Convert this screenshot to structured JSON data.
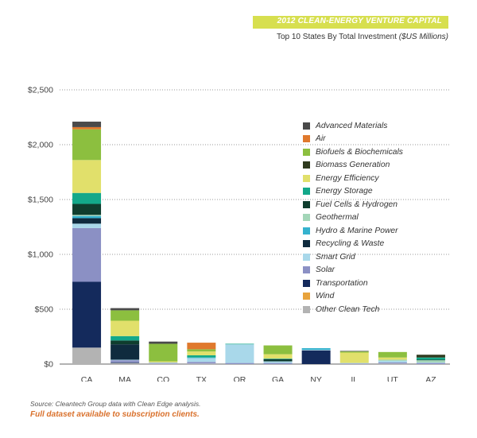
{
  "header": {
    "title": "2012 CLEAN-ENERGY VENTURE CAPITAL",
    "subtitle": "Top 10 States By Total Investment",
    "unit": "($US Millions)"
  },
  "footer": {
    "source": "Source: Cleantech Group data with Clean Edge analysis.",
    "note": "Full dataset available to subscription clients."
  },
  "chart_data": {
    "type": "bar",
    "stacked": true,
    "title": "Top 10 States By Total Investment ($US Millions)",
    "ylim": [
      0,
      2500
    ],
    "yticks": [
      0,
      500,
      1000,
      1500,
      2000,
      2500
    ],
    "ytick_labels": [
      "$0",
      "$500",
      "$1,000",
      "$1,500",
      "$2,000",
      "$2,500"
    ],
    "grid": "horizontal dotted",
    "legend_position": "right",
    "categories": [
      "CA",
      "MA",
      "CO",
      "TX",
      "OR",
      "GA",
      "NY",
      "IL",
      "UT",
      "AZ"
    ],
    "series": [
      {
        "name": "Other Clean Tech",
        "color": "#b3b3b3",
        "values": [
          150,
          10,
          5,
          5,
          0,
          0,
          0,
          0,
          5,
          0
        ]
      },
      {
        "name": "Wind",
        "color": "#e8a33c",
        "values": [
          0,
          0,
          0,
          0,
          0,
          0,
          0,
          0,
          0,
          0
        ]
      },
      {
        "name": "Transportation",
        "color": "#142a5c",
        "values": [
          600,
          5,
          0,
          0,
          0,
          0,
          125,
          0,
          0,
          0
        ]
      },
      {
        "name": "Solar",
        "color": "#8b90c4",
        "values": [
          490,
          20,
          5,
          15,
          10,
          10,
          0,
          5,
          10,
          10
        ]
      },
      {
        "name": "Smart Grid",
        "color": "#a9d8ea",
        "values": [
          40,
          5,
          5,
          35,
          170,
          15,
          5,
          5,
          15,
          5
        ]
      },
      {
        "name": "Recycling & Waste",
        "color": "#0f2b3e",
        "values": [
          50,
          140,
          0,
          0,
          0,
          0,
          0,
          0,
          0,
          0
        ]
      },
      {
        "name": "Hydro & Marine Power",
        "color": "#35b2ce",
        "values": [
          20,
          0,
          0,
          5,
          0,
          0,
          15,
          0,
          0,
          0
        ]
      },
      {
        "name": "Geothermal",
        "color": "#a3d6b8",
        "values": [
          10,
          0,
          0,
          0,
          0,
          0,
          0,
          0,
          10,
          20
        ]
      },
      {
        "name": "Fuel Cells & Hydrogen",
        "color": "#0f3d2e",
        "values": [
          100,
          35,
          0,
          0,
          0,
          20,
          0,
          0,
          0,
          5
        ]
      },
      {
        "name": "Energy Storage",
        "color": "#13a88a",
        "values": [
          100,
          40,
          0,
          20,
          5,
          5,
          0,
          0,
          0,
          20
        ]
      },
      {
        "name": "Energy Efficiency",
        "color": "#e1e06b",
        "values": [
          300,
          140,
          10,
          35,
          0,
          40,
          0,
          95,
          20,
          0
        ]
      },
      {
        "name": "Biomass Generation",
        "color": "#2f3a1e",
        "values": [
          0,
          0,
          0,
          0,
          0,
          0,
          0,
          0,
          0,
          25
        ]
      },
      {
        "name": "Biofuels & Biochemicals",
        "color": "#8cbf3f",
        "values": [
          280,
          95,
          160,
          20,
          0,
          80,
          0,
          10,
          50,
          0
        ]
      },
      {
        "name": "Air",
        "color": "#e0792d",
        "values": [
          20,
          0,
          0,
          60,
          0,
          0,
          0,
          0,
          0,
          0
        ]
      },
      {
        "name": "Advanced Materials",
        "color": "#4a4a4a",
        "values": [
          50,
          20,
          20,
          0,
          0,
          0,
          0,
          5,
          0,
          0
        ]
      }
    ],
    "legend_order": [
      "Advanced Materials",
      "Air",
      "Biofuels & Biochemicals",
      "Biomass Generation",
      "Energy Efficiency",
      "Energy Storage",
      "Fuel Cells & Hydrogen",
      "Geothermal",
      "Hydro & Marine Power",
      "Recycling & Waste",
      "Smart Grid",
      "Solar",
      "Transportation",
      "Wind",
      "Other Clean Tech"
    ]
  }
}
